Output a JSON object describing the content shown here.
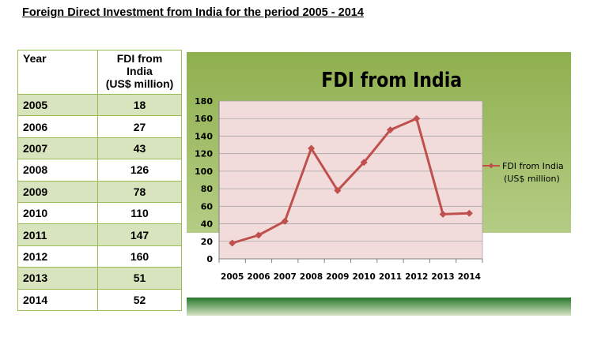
{
  "page": {
    "heading": "Foreign Direct Investment from India for the period 2005 - 2014"
  },
  "table": {
    "headers": {
      "year": "Year",
      "fdi_line1": "FDI from",
      "fdi_line2": "India",
      "fdi_line3": "(US$ million)"
    },
    "rows": [
      {
        "year": "2005",
        "value": "18"
      },
      {
        "year": "2006",
        "value": "27"
      },
      {
        "year": "2007",
        "value": "43"
      },
      {
        "year": "2008",
        "value": "126"
      },
      {
        "year": "2009",
        "value": "78"
      },
      {
        "year": "2010",
        "value": "110"
      },
      {
        "year": "2011",
        "value": "147"
      },
      {
        "year": "2012",
        "value": "160"
      },
      {
        "year": "2013",
        "value": "51"
      },
      {
        "year": "2014",
        "value": "52"
      }
    ]
  },
  "chart_data": {
    "type": "line",
    "title": "FDI from India",
    "categories": [
      "2005",
      "2006",
      "2007",
      "2008",
      "2009",
      "2010",
      "2011",
      "2012",
      "2013",
      "2014"
    ],
    "series": [
      {
        "name": "FDI from India (US$ million)",
        "values": [
          18,
          27,
          43,
          126,
          78,
          110,
          147,
          160,
          51,
          52
        ]
      }
    ],
    "y_ticks": [
      "0",
      "20",
      "40",
      "60",
      "80",
      "100",
      "120",
      "140",
      "160",
      "180"
    ],
    "ylim": [
      0,
      180
    ],
    "legend": {
      "line1": "FDI from India",
      "line2": "(US$ million)",
      "position": "right"
    },
    "grid": true,
    "colors": {
      "line": "#c0504d",
      "plot_bg": "#f2dcdb",
      "frame_bg": "#9bbb59"
    }
  }
}
